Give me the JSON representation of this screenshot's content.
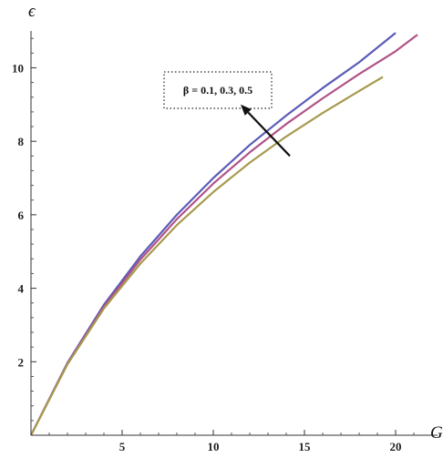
{
  "chart_data": {
    "type": "line",
    "xlabel": "G",
    "ylabel": "ϵ",
    "xlim": [
      0,
      22
    ],
    "ylim": [
      0,
      11.3
    ],
    "x_ticks": [
      5,
      10,
      15,
      20
    ],
    "y_ticks": [
      2,
      4,
      6,
      8,
      10
    ],
    "grid": false,
    "annotation": {
      "text": "β = 0.1,  0.3,  0.5",
      "arrow_from": [
        14.2,
        7.6
      ],
      "arrow_to": [
        11.5,
        9.0
      ]
    },
    "series": [
      {
        "color": "#5b5bb8",
        "x": [
          0,
          2,
          4,
          6,
          8,
          10,
          12,
          14,
          16,
          18,
          20
        ],
        "y": [
          0,
          1.97,
          3.55,
          4.87,
          6.0,
          7.0,
          7.9,
          8.7,
          9.45,
          10.15,
          10.95
        ]
      },
      {
        "color": "#b05287",
        "x": [
          0,
          2,
          4,
          6,
          8,
          10,
          12,
          14,
          16,
          18,
          20,
          21.2
        ],
        "y": [
          0,
          1.95,
          3.5,
          4.78,
          5.88,
          6.85,
          7.7,
          8.47,
          9.17,
          9.83,
          10.45,
          10.9
        ]
      },
      {
        "color": "#a79a4d",
        "x": [
          0,
          2,
          4,
          6,
          8,
          10,
          12,
          14,
          16,
          18,
          19.3
        ],
        "y": [
          0,
          1.93,
          3.45,
          4.67,
          5.72,
          6.62,
          7.42,
          8.13,
          8.77,
          9.37,
          9.75
        ]
      }
    ]
  }
}
